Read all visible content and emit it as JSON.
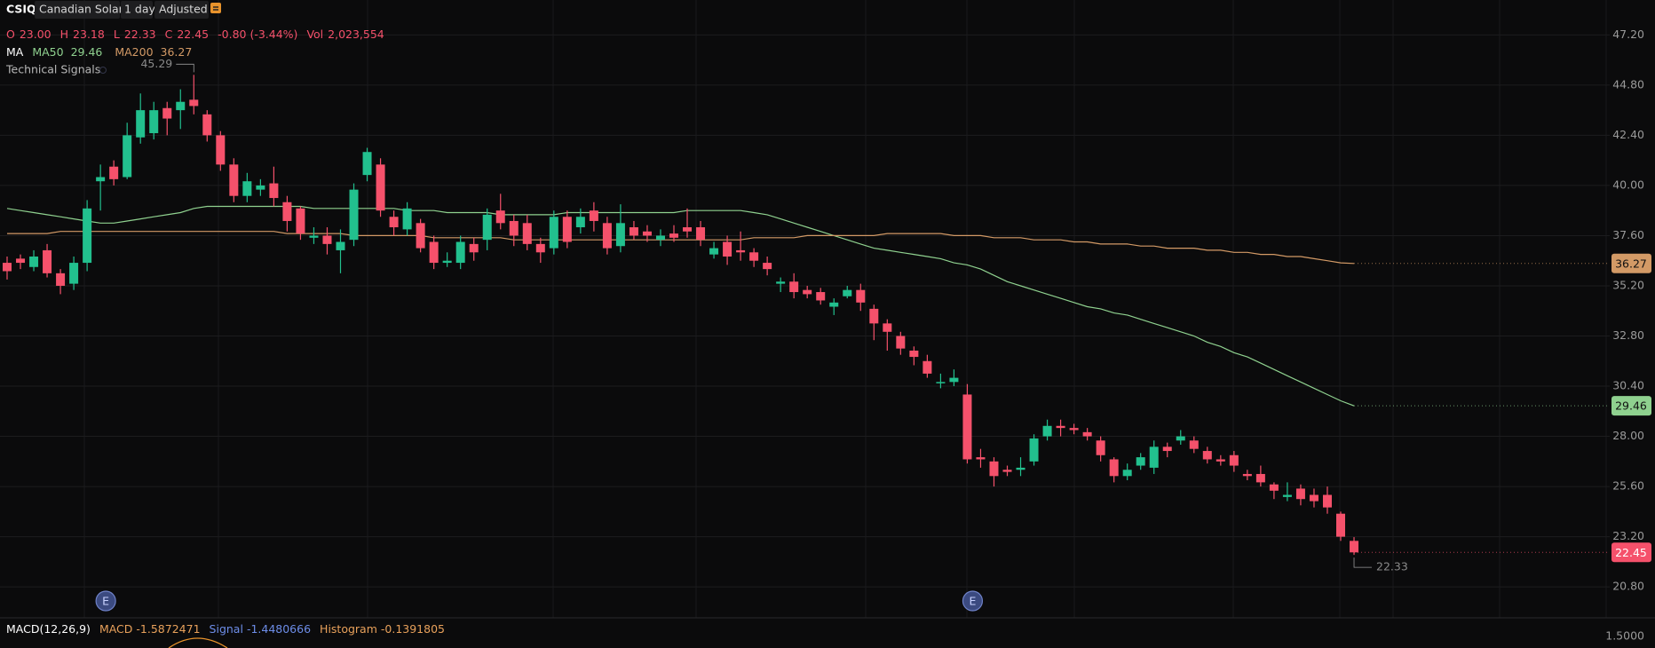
{
  "toolbar": {
    "symbol": "CSIQ",
    "name": "Canadian Solar",
    "interval": "1 day",
    "adjustment": "Adjusted"
  },
  "quote": [
    {
      "label": "O",
      "value": "23.00"
    },
    {
      "label": "H",
      "value": "23.18"
    },
    {
      "label": "L",
      "value": "22.33"
    },
    {
      "label": "C",
      "value": "22.45"
    },
    {
      "label": "",
      "value": "-0.80 (-3.44%)"
    },
    {
      "label": "Vol",
      "value": "2,023,554"
    }
  ],
  "indicators": {
    "title": "MA",
    "signals": "Technical Signals"
  },
  "events": [
    "E",
    "E"
  ],
  "macd": {
    "title": "MACD(12,26,9)",
    "items": [
      {
        "label": "MACD",
        "value": "-1.5872471"
      },
      {
        "label": "Signal",
        "value": "-1.4480666"
      },
      {
        "label": "Histogram",
        "value": "-0.1391805"
      }
    ],
    "axis_label": "1.5000"
  },
  "chart_data": {
    "type": "candlestick",
    "up_color": "#22c08e",
    "down_color": "#f5516b",
    "ylim": [
      19.32,
      48.87
    ],
    "yticks": [
      {
        "value": 20.8,
        "label": "20.80"
      },
      {
        "value": 23.2,
        "label": "23.20"
      },
      {
        "value": 25.6,
        "label": "25.60"
      },
      {
        "value": 28,
        "label": "28.00"
      },
      {
        "value": 30.4,
        "label": "30.40"
      },
      {
        "value": 32.8,
        "label": "32.80"
      },
      {
        "value": 35.2,
        "label": "35.20"
      },
      {
        "value": 37.6,
        "label": "37.60"
      },
      {
        "value": 40,
        "label": "40.00"
      },
      {
        "value": 42.4,
        "label": "42.40"
      },
      {
        "value": 44.8,
        "label": "44.80"
      },
      {
        "value": 47.2,
        "label": "47.20"
      }
    ],
    "grid": true,
    "open": [
      36.3,
      36.5,
      36.1,
      36.9,
      35.8,
      35.3,
      36.3,
      40.2,
      40.9,
      40.4,
      42.3,
      42.5,
      43.7,
      43.6,
      44.1,
      43.4,
      42.4,
      41.0,
      39.5,
      39.8,
      40.1,
      39.2,
      38.9,
      37.5,
      37.6,
      36.9,
      37.4,
      40.5,
      41.0,
      38.5,
      37.9,
      38.2,
      37.3,
      36.3,
      36.3,
      37.2,
      37.4,
      38.8,
      38.3,
      38.2,
      37.2,
      37.0,
      38.5,
      38.0,
      38.8,
      38.2,
      37.1,
      38.0,
      37.8,
      37.4,
      37.7,
      38.0,
      38.0,
      36.7,
      37.3,
      36.9,
      36.8,
      36.3,
      35.3,
      35.4,
      35.0,
      34.9,
      34.2,
      34.7,
      35.0,
      34.1,
      33.4,
      32.8,
      32.1,
      31.6,
      30.6,
      30.6,
      30.0,
      27.0,
      26.8,
      26.4,
      26.4,
      26.8,
      28.0,
      28.5,
      28.4,
      28.2,
      27.8,
      26.9,
      26.1,
      26.6,
      26.5,
      27.5,
      27.8,
      27.8,
      27.3,
      26.9,
      27.1,
      26.2,
      26.2,
      25.7,
      25.1,
      25.5,
      25.2,
      25.2,
      24.3,
      23.0
    ],
    "high": [
      36.6,
      36.7,
      36.9,
      37.2,
      36.0,
      36.6,
      39.3,
      41.0,
      41.2,
      43.0,
      44.4,
      44.0,
      44.0,
      44.6,
      45.29,
      43.6,
      42.6,
      41.3,
      40.6,
      40.3,
      40.9,
      39.5,
      39.0,
      38.0,
      38.0,
      37.9,
      40.1,
      41.8,
      41.3,
      38.8,
      39.2,
      38.4,
      37.6,
      36.8,
      37.6,
      37.5,
      38.9,
      39.6,
      38.6,
      38.6,
      37.5,
      38.8,
      38.8,
      38.9,
      39.2,
      38.5,
      39.1,
      38.3,
      38.1,
      37.9,
      38.1,
      38.9,
      38.3,
      37.3,
      37.6,
      37.8,
      37.0,
      36.6,
      35.6,
      35.8,
      35.2,
      35.1,
      34.6,
      35.2,
      35.3,
      34.3,
      33.6,
      33.0,
      32.3,
      31.9,
      31.0,
      31.2,
      30.5,
      27.4,
      27.0,
      26.6,
      27.0,
      28.1,
      28.8,
      28.8,
      28.6,
      28.4,
      28.0,
      27.0,
      26.7,
      27.2,
      27.8,
      27.7,
      28.3,
      28.0,
      27.5,
      27.1,
      27.3,
      26.4,
      26.6,
      25.8,
      25.8,
      25.7,
      25.5,
      25.6,
      24.4,
      23.18
    ],
    "low": [
      35.5,
      36.0,
      35.9,
      35.6,
      34.8,
      35.0,
      35.9,
      38.8,
      40.0,
      40.3,
      42.0,
      42.2,
      42.4,
      42.7,
      43.4,
      42.1,
      40.7,
      39.2,
      39.2,
      39.5,
      39.0,
      37.8,
      37.4,
      37.2,
      36.7,
      35.8,
      37.1,
      40.2,
      38.5,
      37.6,
      37.6,
      36.8,
      36.0,
      36.1,
      36.0,
      36.4,
      36.9,
      37.9,
      37.1,
      36.9,
      36.3,
      36.7,
      37.0,
      37.7,
      37.8,
      36.7,
      36.8,
      37.4,
      37.3,
      37.1,
      37.3,
      37.5,
      37.1,
      36.5,
      36.2,
      36.4,
      36.1,
      35.7,
      34.9,
      34.6,
      34.6,
      34.3,
      33.8,
      34.6,
      34.0,
      32.6,
      32.1,
      31.9,
      31.4,
      30.8,
      30.3,
      30.4,
      26.7,
      26.5,
      25.6,
      26.1,
      26.1,
      26.6,
      27.8,
      28.0,
      28.1,
      27.8,
      26.8,
      25.8,
      25.9,
      26.4,
      26.2,
      27.0,
      27.6,
      27.2,
      26.7,
      26.6,
      26.3,
      25.9,
      25.6,
      25.0,
      24.9,
      24.7,
      24.6,
      24.3,
      23.0,
      22.33
    ],
    "close": [
      35.9,
      36.3,
      36.6,
      35.8,
      35.2,
      36.3,
      38.9,
      40.4,
      40.3,
      42.4,
      43.6,
      43.6,
      43.2,
      44.0,
      43.8,
      42.4,
      41.0,
      39.5,
      40.2,
      40.0,
      39.4,
      38.3,
      37.7,
      37.6,
      37.2,
      37.3,
      39.8,
      41.6,
      38.8,
      38.0,
      38.9,
      37.0,
      36.3,
      36.4,
      37.3,
      36.8,
      38.6,
      38.2,
      37.6,
      37.2,
      36.8,
      38.5,
      37.3,
      38.5,
      38.3,
      37.0,
      38.2,
      37.6,
      37.6,
      37.6,
      37.5,
      37.8,
      37.4,
      37.0,
      36.6,
      36.8,
      36.4,
      36.0,
      35.4,
      34.9,
      34.8,
      34.5,
      34.4,
      35.0,
      34.4,
      33.4,
      33.0,
      32.2,
      31.8,
      31.0,
      30.6,
      30.8,
      26.9,
      26.9,
      26.1,
      26.3,
      26.5,
      27.9,
      28.5,
      28.4,
      28.3,
      28.0,
      27.1,
      26.1,
      26.4,
      27.0,
      27.5,
      27.3,
      28.0,
      27.4,
      26.9,
      26.8,
      26.6,
      26.1,
      25.8,
      25.4,
      25.2,
      25.0,
      24.9,
      24.6,
      23.2,
      22.45
    ],
    "series": [
      {
        "name": "MA50",
        "color": "#8fd18f",
        "values": [
          38.9,
          38.8,
          38.7,
          38.6,
          38.5,
          38.4,
          38.3,
          38.2,
          38.2,
          38.3,
          38.4,
          38.5,
          38.6,
          38.7,
          38.9,
          39.0,
          39.0,
          39.0,
          39.0,
          39.0,
          39.0,
          39.0,
          39.0,
          38.9,
          38.9,
          38.9,
          38.9,
          38.9,
          38.9,
          38.9,
          38.8,
          38.8,
          38.8,
          38.7,
          38.7,
          38.7,
          38.7,
          38.6,
          38.6,
          38.6,
          38.6,
          38.6,
          38.7,
          38.7,
          38.7,
          38.7,
          38.7,
          38.7,
          38.7,
          38.7,
          38.7,
          38.8,
          38.8,
          38.8,
          38.8,
          38.8,
          38.7,
          38.6,
          38.4,
          38.2,
          38.0,
          37.8,
          37.6,
          37.4,
          37.2,
          37.0,
          36.9,
          36.8,
          36.7,
          36.6,
          36.5,
          36.3,
          36.2,
          36.0,
          35.7,
          35.4,
          35.2,
          35.0,
          34.8,
          34.6,
          34.4,
          34.2,
          34.1,
          33.9,
          33.8,
          33.6,
          33.4,
          33.2,
          33.0,
          32.8,
          32.5,
          32.3,
          32.0,
          31.8,
          31.5,
          31.2,
          30.9,
          30.6,
          30.3,
          30.0,
          29.7,
          29.46
        ]
      },
      {
        "name": "MA200",
        "color": "#d39a66",
        "values": [
          37.7,
          37.7,
          37.7,
          37.7,
          37.8,
          37.8,
          37.8,
          37.8,
          37.8,
          37.8,
          37.8,
          37.8,
          37.8,
          37.8,
          37.8,
          37.8,
          37.8,
          37.8,
          37.8,
          37.8,
          37.8,
          37.7,
          37.7,
          37.7,
          37.7,
          37.7,
          37.6,
          37.6,
          37.6,
          37.6,
          37.6,
          37.6,
          37.5,
          37.5,
          37.5,
          37.5,
          37.5,
          37.5,
          37.4,
          37.4,
          37.4,
          37.4,
          37.4,
          37.4,
          37.4,
          37.4,
          37.4,
          37.4,
          37.4,
          37.4,
          37.4,
          37.4,
          37.4,
          37.4,
          37.4,
          37.4,
          37.5,
          37.5,
          37.5,
          37.5,
          37.6,
          37.6,
          37.6,
          37.6,
          37.6,
          37.6,
          37.7,
          37.7,
          37.7,
          37.7,
          37.7,
          37.6,
          37.6,
          37.6,
          37.5,
          37.5,
          37.5,
          37.4,
          37.4,
          37.4,
          37.3,
          37.3,
          37.2,
          37.2,
          37.2,
          37.1,
          37.1,
          37.0,
          37.0,
          37.0,
          36.9,
          36.9,
          36.8,
          36.8,
          36.7,
          36.7,
          36.6,
          36.6,
          36.5,
          36.4,
          36.3,
          36.27
        ]
      }
    ]
  }
}
